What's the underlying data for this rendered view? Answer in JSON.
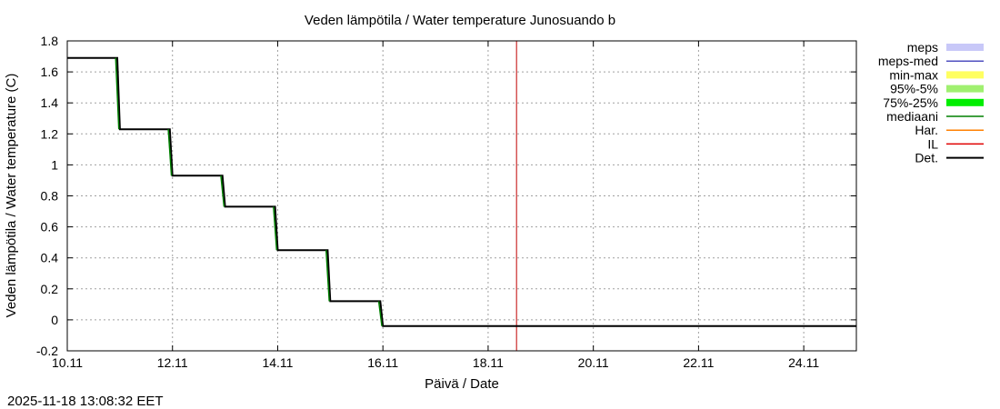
{
  "chart_data": {
    "type": "line",
    "title": "Veden lämpötila / Water temperature Junosuando b",
    "xlabel": "Päivä / Date",
    "ylabel": "Veden lämpötila / Water temperature (C)",
    "timestamp": "2025-11-18 13:08:32 EET",
    "xlim": [
      10.0,
      25.0
    ],
    "ylim": [
      -0.2,
      1.8
    ],
    "x_ticks": [
      {
        "value": 10,
        "label": "10.11"
      },
      {
        "value": 12,
        "label": "12.11"
      },
      {
        "value": 14,
        "label": "14.11"
      },
      {
        "value": 16,
        "label": "16.11"
      },
      {
        "value": 18,
        "label": "18.11"
      },
      {
        "value": 20,
        "label": "20.11"
      },
      {
        "value": 22,
        "label": "22.11"
      },
      {
        "value": 24,
        "label": "24.11"
      }
    ],
    "y_ticks": [
      {
        "value": 1.8,
        "label": "1.8"
      },
      {
        "value": 1.6,
        "label": "1.6"
      },
      {
        "value": 1.4,
        "label": "1.4"
      },
      {
        "value": 1.2,
        "label": "1.2"
      },
      {
        "value": 1.0,
        "label": "1"
      },
      {
        "value": 0.8,
        "label": "0.8"
      },
      {
        "value": 0.6,
        "label": "0.6"
      },
      {
        "value": 0.4,
        "label": "0.4"
      },
      {
        "value": 0.2,
        "label": "0.2"
      },
      {
        "value": 0.0,
        "label": "0"
      },
      {
        "value": -0.2,
        "label": "-0.2"
      }
    ],
    "grid": true,
    "legend_position": "right",
    "legend": [
      {
        "name": "meps",
        "color": "#c8c8f8",
        "style": "band"
      },
      {
        "name": "meps-med",
        "color": "#5050c0",
        "style": "line"
      },
      {
        "name": "min-max",
        "color": "#ffff60",
        "style": "band"
      },
      {
        "name": "95%-5%",
        "color": "#a0f070",
        "style": "band"
      },
      {
        "name": "75%-25%",
        "color": "#00ee00",
        "style": "band"
      },
      {
        "name": "mediaani",
        "color": "#008000",
        "style": "line"
      },
      {
        "name": "Har.",
        "color": "#ff8000",
        "style": "line"
      },
      {
        "name": "IL",
        "color": "#e00000",
        "style": "line"
      },
      {
        "name": "Det.",
        "color": "#000000",
        "style": "line"
      }
    ],
    "vline": {
      "series": "IL",
      "x": 18.54,
      "color": "#c00000"
    },
    "series": [
      {
        "name": "Det.",
        "color": "#000000",
        "x": [
          10.0,
          10.95,
          11.0,
          11.95,
          12.0,
          12.95,
          13.0,
          13.95,
          14.0,
          14.95,
          15.0,
          15.95,
          16.0,
          25.0
        ],
        "y": [
          1.69,
          1.69,
          1.23,
          1.23,
          0.93,
          0.93,
          0.73,
          0.73,
          0.45,
          0.45,
          0.12,
          0.12,
          -0.04,
          -0.04
        ]
      },
      {
        "name": "mediaani",
        "color": "#008000",
        "x": [
          10.92,
          10.98,
          11.92,
          11.98,
          12.92,
          12.98,
          13.92,
          13.98,
          14.92,
          14.98,
          15.92,
          15.98
        ],
        "y": [
          1.69,
          1.23,
          1.23,
          0.93,
          0.93,
          0.73,
          0.73,
          0.45,
          0.45,
          0.12,
          0.12,
          -0.04
        ]
      }
    ]
  }
}
